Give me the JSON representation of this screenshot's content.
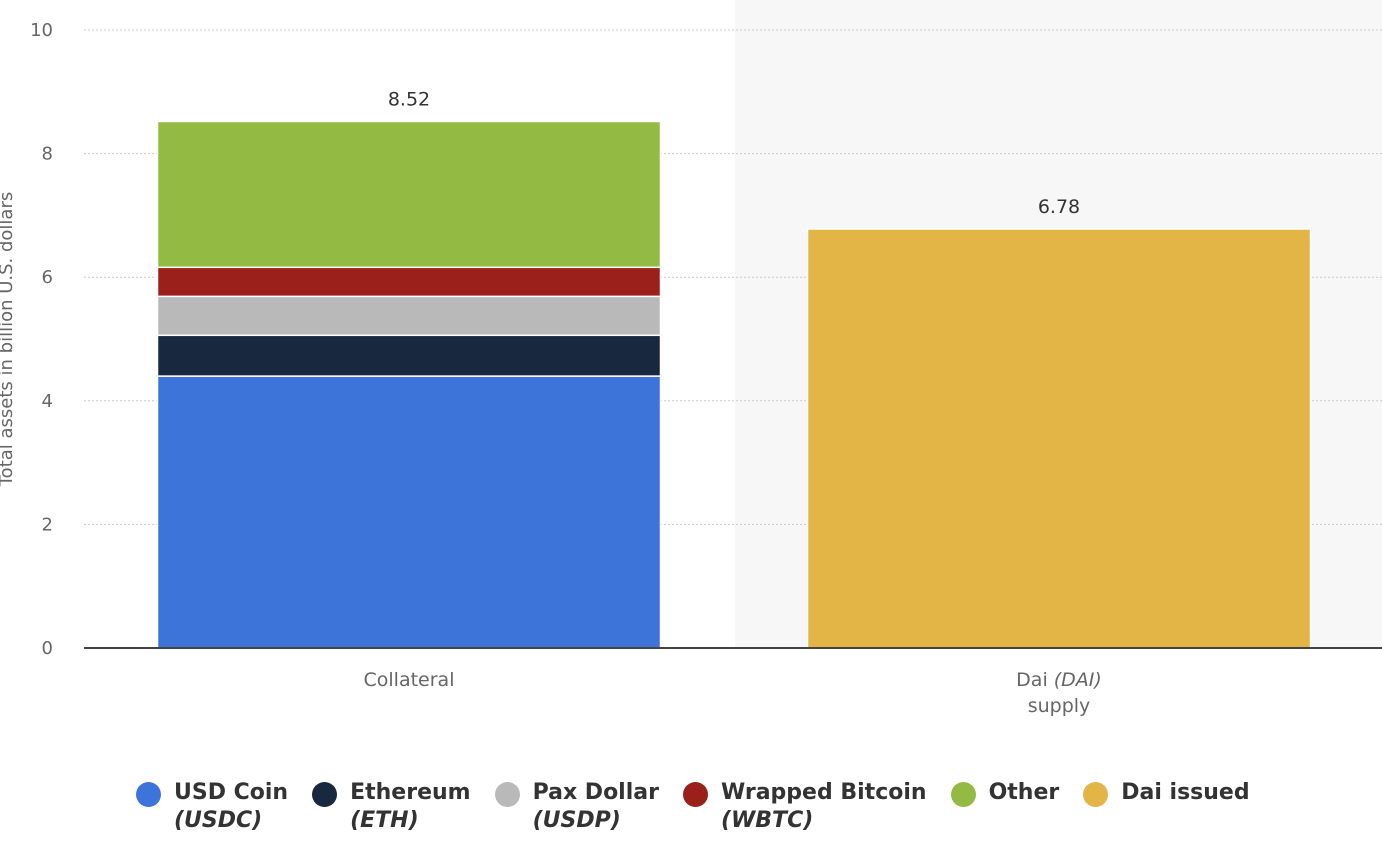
{
  "chart_data": {
    "type": "bar",
    "stacked": true,
    "ylabel": "Total assets in billion U.S. dollars",
    "ylim": [
      0,
      10
    ],
    "yticks": [
      0,
      2,
      4,
      6,
      8,
      10
    ],
    "grid": true,
    "legend_position": "bottom",
    "categories": [
      {
        "label": "Collateral",
        "label_italic": "",
        "label_line2": ""
      },
      {
        "label": "Dai ",
        "label_italic": "(DAI)",
        "label_line2": "supply"
      }
    ],
    "series": [
      {
        "name": "USD Coin",
        "name_sub": "(USDC)",
        "color": "#3d74d9",
        "values": [
          4.4,
          0
        ]
      },
      {
        "name": "Ethereum",
        "name_sub": "(ETH)",
        "color": "#18283f",
        "values": [
          0.66,
          0
        ]
      },
      {
        "name": "Pax Dollar",
        "name_sub": "(USDP)",
        "color": "#b9b9b9",
        "values": [
          0.63,
          0
        ]
      },
      {
        "name": "Wrapped Bitcoin",
        "name_sub": "(WBTC)",
        "color": "#9b1f1b",
        "values": [
          0.47,
          0
        ]
      },
      {
        "name": "Other",
        "name_sub": "",
        "color": "#93bb44",
        "values": [
          2.36,
          0
        ]
      },
      {
        "name": "Dai issued",
        "name_sub": "",
        "color": "#e2b546",
        "values": [
          0,
          6.78
        ]
      }
    ],
    "totals": [
      "8.52",
      "6.78"
    ],
    "highlight_category_index": 1,
    "colors": {
      "gridline": "#c8c8c8",
      "axis": "#444444",
      "highlight_band": "#f7f7f7"
    }
  }
}
